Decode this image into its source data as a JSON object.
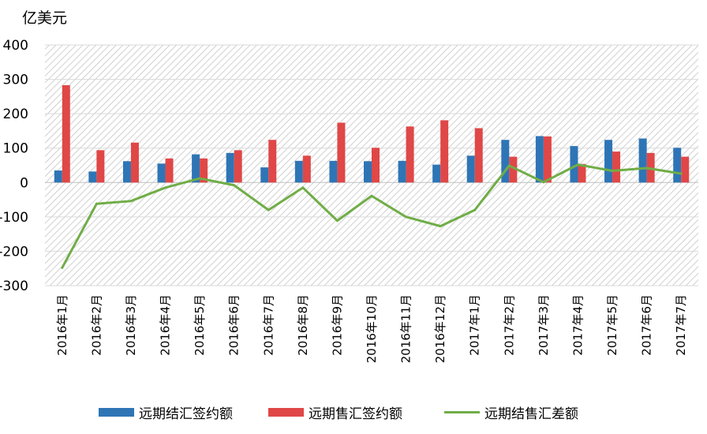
{
  "chart_data": {
    "type": "bar+line",
    "unit_label": "亿美元",
    "categories": [
      "2016年1月",
      "2016年2月",
      "2016年3月",
      "2016年4月",
      "2016年5月",
      "2016年6月",
      "2016年7月",
      "2016年8月",
      "2016年9月",
      "2016年10月",
      "2016年11月",
      "2016年12月",
      "2017年1月",
      "2017年2月",
      "2017年3月",
      "2017年4月",
      "2017年5月",
      "2017年6月",
      "2017年7月"
    ],
    "ylim": [
      -300,
      400
    ],
    "yticks": [
      400,
      300,
      200,
      100,
      0,
      -100,
      -200,
      -300
    ],
    "grid": true,
    "legend_position": "bottom",
    "series": [
      {
        "name": "远期结汇签约额",
        "type": "bar",
        "color": "#2E75B6",
        "values": [
          35,
          32,
          62,
          55,
          82,
          86,
          44,
          63,
          63,
          62,
          63,
          52,
          78,
          124,
          135,
          106,
          124,
          128,
          101
        ]
      },
      {
        "name": "远期售汇签约额",
        "type": "bar",
        "color": "#E04747",
        "values": [
          283,
          94,
          116,
          70,
          70,
          94,
          124,
          78,
          174,
          101,
          163,
          181,
          158,
          75,
          134,
          54,
          90,
          86,
          75
        ]
      },
      {
        "name": "远期结售汇差额",
        "type": "line",
        "color": "#70AD47",
        "values": [
          -248,
          -62,
          -54,
          -15,
          12,
          -8,
          -80,
          -15,
          -111,
          -39,
          -100,
          -127,
          -80,
          49,
          1,
          52,
          34,
          42,
          26
        ]
      }
    ]
  }
}
